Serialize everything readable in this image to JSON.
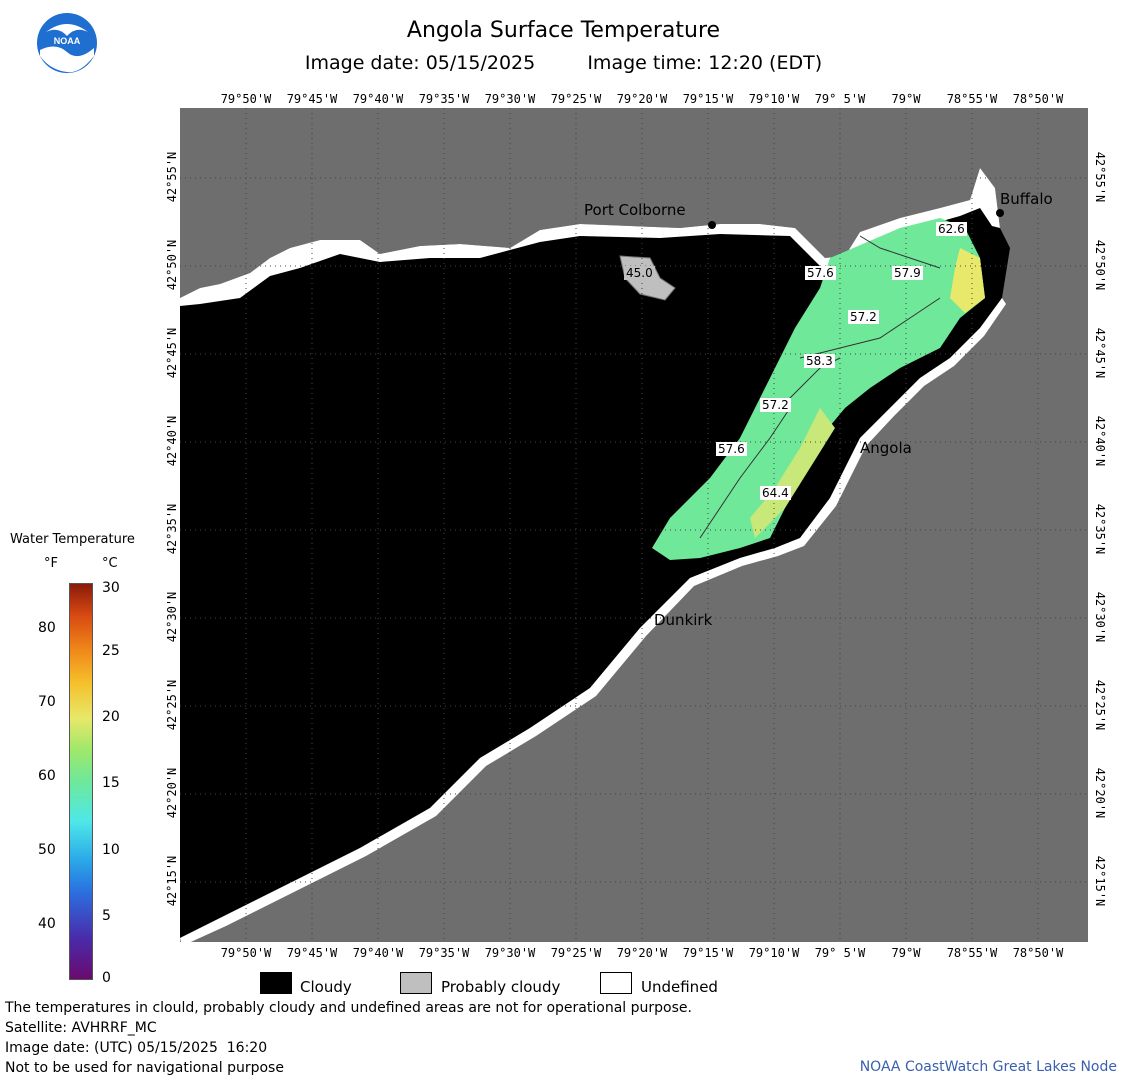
{
  "header": {
    "title": "Angola Surface Temperature",
    "subtitle_date": "Image date: 05/15/2025",
    "subtitle_time": "Image time: 12:20 (EDT)"
  },
  "axes": {
    "lon_ticks": [
      "79°50'W",
      "79°45'W",
      "79°40'W",
      "79°35'W",
      "79°30'W",
      "79°25'W",
      "79°20'W",
      "79°15'W",
      "79°10'W",
      "79° 5'W",
      "79°W",
      "78°55'W",
      "78°50'W"
    ],
    "lat_ticks": [
      "42°55'N",
      "42°50'N",
      "42°45'N",
      "42°40'N",
      "42°35'N",
      "42°30'N",
      "42°25'N",
      "42°20'N",
      "42°15'N"
    ]
  },
  "cities": [
    {
      "name": "Buffalo"
    },
    {
      "name": "Port Colborne"
    },
    {
      "name": "Angola"
    },
    {
      "name": "Dunkirk"
    }
  ],
  "temp_labels": [
    "45.0",
    "57.6",
    "57.9",
    "62.6",
    "57.2",
    "58.3",
    "57.2",
    "57.6",
    "64.4"
  ],
  "legend": {
    "title": "Water Temperature",
    "unit_f": "°F",
    "unit_c": "°C",
    "f_values": [
      "80",
      "70",
      "60",
      "50",
      "40"
    ],
    "c_values": [
      "30",
      "25",
      "20",
      "15",
      "10",
      "5",
      "0"
    ],
    "colors": {
      "cloudy": "#000000",
      "probably_cloudy": "#bfbfbf",
      "undefined": "#ffffff",
      "land": "#6e6e6e"
    }
  },
  "key": {
    "cloudy": "Cloudy",
    "probably_cloudy": "Probably cloudy",
    "undefined": "Undefined"
  },
  "footer": {
    "disclaimer": "The temperatures in clould, probably cloudy and undefined areas are not for operational purpose.",
    "satellite": "Satellite: AVHRRF_MC",
    "utc_date": "Image date: (UTC) 05/15/2025  16:20",
    "nav": "Not to be used for navigational purpose",
    "credit": "NOAA CoastWatch Great Lakes Node"
  },
  "logo": {
    "text": "NOAA"
  }
}
